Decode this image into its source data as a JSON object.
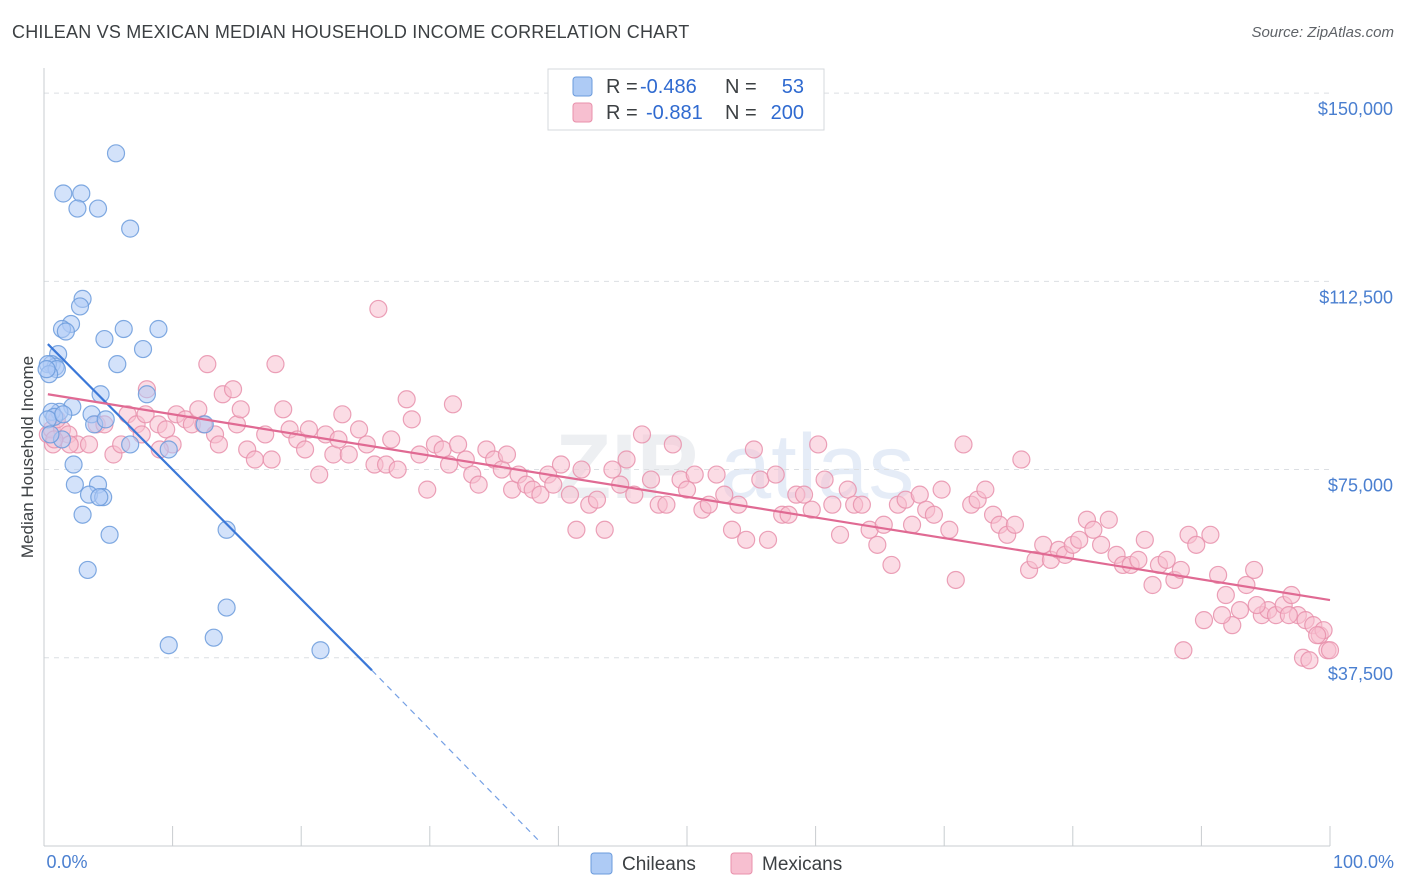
{
  "title": "CHILEAN VS MEXICAN MEDIAN HOUSEHOLD INCOME CORRELATION CHART",
  "source": "Source: ZipAtlas.com",
  "watermark": {
    "part1": "ZIP",
    "part2": "atlas"
  },
  "chart_data": {
    "type": "scatter",
    "ylabel": "Median Household Income",
    "xlim": [
      0,
      100
    ],
    "ylim": [
      0,
      155000
    ],
    "x_tick_labels": {
      "left": "0.0%",
      "right": "100.0%"
    },
    "y_ticks": [
      {
        "value": 150000,
        "label": "$150,000"
      },
      {
        "value": 112500,
        "label": "$112,500"
      },
      {
        "value": 75000,
        "label": "$75,000"
      },
      {
        "value": 37500,
        "label": "$37,500"
      }
    ],
    "legend": [
      {
        "r_label": "R =",
        "r_value": "-0.486",
        "n_label": "N =",
        "n_value": "53",
        "color": "#aecbf5",
        "stroke": "#6b9bdc"
      },
      {
        "r_label": "R =",
        "r_value": "-0.881",
        "n_label": "N =",
        "n_value": "200",
        "color": "#f7bfd0",
        "stroke": "#e890ab"
      }
    ],
    "series": [
      {
        "name": "Chileans",
        "color": "#aecbf5",
        "stroke": "#6b9bdc",
        "trend": {
          "x0": 0.3,
          "y0": 100000,
          "x1": 25.5,
          "y1": 35000,
          "x_ext": 38.5,
          "y_ext": 1000,
          "color": "#3b78d8"
        },
        "points": [
          [
            5.6,
            138000
          ],
          [
            1.5,
            130000
          ],
          [
            2.9,
            130000
          ],
          [
            2.6,
            127000
          ],
          [
            4.2,
            127000
          ],
          [
            6.7,
            123000
          ],
          [
            3.0,
            109000
          ],
          [
            2.8,
            107500
          ],
          [
            2.1,
            104000
          ],
          [
            1.4,
            103000
          ],
          [
            1.7,
            102500
          ],
          [
            6.2,
            103000
          ],
          [
            8.9,
            103000
          ],
          [
            4.7,
            101000
          ],
          [
            7.7,
            99000
          ],
          [
            1.1,
            98000
          ],
          [
            0.6,
            96000
          ],
          [
            0.9,
            95500
          ],
          [
            0.3,
            96000
          ],
          [
            1.0,
            95000
          ],
          [
            5.7,
            96000
          ],
          [
            0.4,
            94000
          ],
          [
            4.4,
            90000
          ],
          [
            8.0,
            90000
          ],
          [
            2.2,
            87500
          ],
          [
            1.2,
            86500
          ],
          [
            0.6,
            86500
          ],
          [
            0.8,
            85500
          ],
          [
            3.7,
            86000
          ],
          [
            0.3,
            85000
          ],
          [
            1.4,
            81000
          ],
          [
            6.7,
            80000
          ],
          [
            3.9,
            84000
          ],
          [
            9.7,
            79000
          ],
          [
            2.3,
            76000
          ],
          [
            2.4,
            72000
          ],
          [
            4.2,
            72000
          ],
          [
            3.5,
            70000
          ],
          [
            4.6,
            69500
          ],
          [
            4.3,
            69500
          ],
          [
            3.0,
            66000
          ],
          [
            5.1,
            62000
          ],
          [
            14.2,
            63000
          ],
          [
            3.4,
            55000
          ],
          [
            14.2,
            47500
          ],
          [
            9.7,
            40000
          ],
          [
            13.2,
            41500
          ],
          [
            21.5,
            39000
          ],
          [
            0.2,
            95000
          ],
          [
            0.5,
            82000
          ],
          [
            1.5,
            86000
          ],
          [
            12.5,
            84000
          ],
          [
            4.8,
            85000
          ]
        ]
      },
      {
        "name": "Mexicans",
        "color": "#f7bfd0",
        "stroke": "#e890ab",
        "trend": {
          "x0": 0.3,
          "y0": 90000,
          "x1": 100,
          "y1": 49000,
          "color": "#e06a93"
        },
        "points": [
          [
            0.3,
            82000
          ],
          [
            0.7,
            80000
          ],
          [
            0.6,
            83000
          ],
          [
            1.4,
            83000
          ],
          [
            1.9,
            82000
          ],
          [
            2.6,
            80000
          ],
          [
            3.5,
            80000
          ],
          [
            4.1,
            84000
          ],
          [
            4.7,
            84000
          ],
          [
            5.4,
            78000
          ],
          [
            6.0,
            80000
          ],
          [
            6.5,
            86000
          ],
          [
            7.2,
            84000
          ],
          [
            7.6,
            82000
          ],
          [
            7.9,
            86000
          ],
          [
            8.0,
            91000
          ],
          [
            8.9,
            84000
          ],
          [
            9.5,
            83000
          ],
          [
            10.0,
            80000
          ],
          [
            10.3,
            86000
          ],
          [
            11.0,
            85000
          ],
          [
            11.5,
            84000
          ],
          [
            12.0,
            87000
          ],
          [
            12.4,
            84000
          ],
          [
            12.7,
            96000
          ],
          [
            13.3,
            82000
          ],
          [
            13.6,
            80000
          ],
          [
            13.9,
            90000
          ],
          [
            14.7,
            91000
          ],
          [
            15.0,
            84000
          ],
          [
            15.3,
            87000
          ],
          [
            15.8,
            79000
          ],
          [
            16.4,
            77000
          ],
          [
            17.2,
            82000
          ],
          [
            17.7,
            77000
          ],
          [
            18.0,
            96000
          ],
          [
            18.6,
            87000
          ],
          [
            19.1,
            83000
          ],
          [
            19.7,
            81000
          ],
          [
            20.3,
            79000
          ],
          [
            20.6,
            83000
          ],
          [
            21.4,
            74000
          ],
          [
            21.9,
            82000
          ],
          [
            22.5,
            78000
          ],
          [
            22.9,
            81000
          ],
          [
            23.2,
            86000
          ],
          [
            23.7,
            78000
          ],
          [
            24.5,
            83000
          ],
          [
            25.1,
            80000
          ],
          [
            25.7,
            76000
          ],
          [
            26.0,
            107000
          ],
          [
            26.6,
            76000
          ],
          [
            27.0,
            81000
          ],
          [
            27.5,
            75000
          ],
          [
            28.2,
            89000
          ],
          [
            28.6,
            85000
          ],
          [
            29.2,
            78000
          ],
          [
            29.8,
            71000
          ],
          [
            30.4,
            80000
          ],
          [
            31.0,
            79000
          ],
          [
            31.5,
            76000
          ],
          [
            31.8,
            88000
          ],
          [
            32.2,
            80000
          ],
          [
            32.8,
            77000
          ],
          [
            33.3,
            74000
          ],
          [
            33.8,
            72000
          ],
          [
            34.4,
            79000
          ],
          [
            35.0,
            77000
          ],
          [
            35.6,
            75000
          ],
          [
            36.0,
            78000
          ],
          [
            36.4,
            71000
          ],
          [
            36.9,
            74000
          ],
          [
            37.5,
            72000
          ],
          [
            38.0,
            71000
          ],
          [
            38.6,
            70000
          ],
          [
            39.2,
            74000
          ],
          [
            39.6,
            72000
          ],
          [
            40.2,
            76000
          ],
          [
            40.9,
            70000
          ],
          [
            41.4,
            63000
          ],
          [
            41.8,
            75000
          ],
          [
            42.4,
            68000
          ],
          [
            43.0,
            69000
          ],
          [
            43.6,
            63000
          ],
          [
            44.2,
            75000
          ],
          [
            44.8,
            72000
          ],
          [
            45.3,
            77000
          ],
          [
            45.9,
            70000
          ],
          [
            46.5,
            82000
          ],
          [
            47.2,
            73000
          ],
          [
            47.8,
            68000
          ],
          [
            48.4,
            68000
          ],
          [
            48.9,
            80000
          ],
          [
            49.5,
            73000
          ],
          [
            50.0,
            71000
          ],
          [
            50.6,
            74000
          ],
          [
            51.2,
            67000
          ],
          [
            51.7,
            68000
          ],
          [
            52.3,
            74000
          ],
          [
            52.9,
            70000
          ],
          [
            53.5,
            63000
          ],
          [
            54.0,
            68000
          ],
          [
            54.6,
            61000
          ],
          [
            55.2,
            79000
          ],
          [
            55.7,
            73000
          ],
          [
            56.3,
            61000
          ],
          [
            56.9,
            74000
          ],
          [
            57.4,
            66000
          ],
          [
            57.9,
            66000
          ],
          [
            58.5,
            70000
          ],
          [
            59.1,
            70000
          ],
          [
            59.7,
            67000
          ],
          [
            60.2,
            80000
          ],
          [
            60.7,
            73000
          ],
          [
            61.3,
            68000
          ],
          [
            61.9,
            62000
          ],
          [
            62.5,
            71000
          ],
          [
            63.0,
            68000
          ],
          [
            63.6,
            68000
          ],
          [
            64.2,
            63000
          ],
          [
            64.8,
            60000
          ],
          [
            65.3,
            64000
          ],
          [
            65.9,
            56000
          ],
          [
            66.4,
            68000
          ],
          [
            67.0,
            69000
          ],
          [
            67.5,
            64000
          ],
          [
            68.1,
            70000
          ],
          [
            68.6,
            67000
          ],
          [
            69.2,
            66000
          ],
          [
            69.8,
            71000
          ],
          [
            70.4,
            63000
          ],
          [
            70.9,
            53000
          ],
          [
            71.5,
            80000
          ],
          [
            72.1,
            68000
          ],
          [
            72.6,
            69000
          ],
          [
            73.2,
            71000
          ],
          [
            73.8,
            66000
          ],
          [
            74.3,
            64000
          ],
          [
            74.9,
            62000
          ],
          [
            75.5,
            64000
          ],
          [
            76.0,
            77000
          ],
          [
            76.6,
            55000
          ],
          [
            77.1,
            57000
          ],
          [
            77.7,
            60000
          ],
          [
            78.3,
            57000
          ],
          [
            78.9,
            59000
          ],
          [
            79.4,
            58000
          ],
          [
            80.0,
            60000
          ],
          [
            80.5,
            61000
          ],
          [
            81.1,
            65000
          ],
          [
            81.6,
            63000
          ],
          [
            82.2,
            60000
          ],
          [
            82.8,
            65000
          ],
          [
            83.4,
            58000
          ],
          [
            83.9,
            56000
          ],
          [
            84.5,
            56000
          ],
          [
            85.1,
            57000
          ],
          [
            85.6,
            61000
          ],
          [
            86.2,
            52000
          ],
          [
            86.7,
            56000
          ],
          [
            87.3,
            57000
          ],
          [
            87.9,
            53000
          ],
          [
            88.4,
            55000
          ],
          [
            89.0,
            62000
          ],
          [
            89.6,
            60000
          ],
          [
            90.2,
            45000
          ],
          [
            90.7,
            62000
          ],
          [
            91.3,
            54000
          ],
          [
            91.9,
            50000
          ],
          [
            92.4,
            44000
          ],
          [
            93.0,
            47000
          ],
          [
            93.5,
            52000
          ],
          [
            94.1,
            55000
          ],
          [
            94.7,
            46000
          ],
          [
            95.2,
            47000
          ],
          [
            95.8,
            46000
          ],
          [
            96.4,
            48000
          ],
          [
            97.0,
            50000
          ],
          [
            97.5,
            46000
          ],
          [
            98.1,
            45000
          ],
          [
            98.7,
            44000
          ],
          [
            99.2,
            42000
          ],
          [
            99.8,
            39000
          ],
          [
            88.6,
            39000
          ],
          [
            91.6,
            46000
          ],
          [
            94.3,
            48000
          ],
          [
            96.8,
            46000
          ],
          [
            97.9,
            37500
          ],
          [
            98.4,
            37000
          ],
          [
            99.5,
            43000
          ],
          [
            100.0,
            39000
          ],
          [
            99.0,
            42000
          ],
          [
            9.0,
            79000
          ],
          [
            2.0,
            80000
          ],
          [
            1.0,
            85000
          ],
          [
            0.8,
            81000
          ]
        ]
      }
    ],
    "bottom_legend": [
      "Chileans",
      "Mexicans"
    ]
  }
}
